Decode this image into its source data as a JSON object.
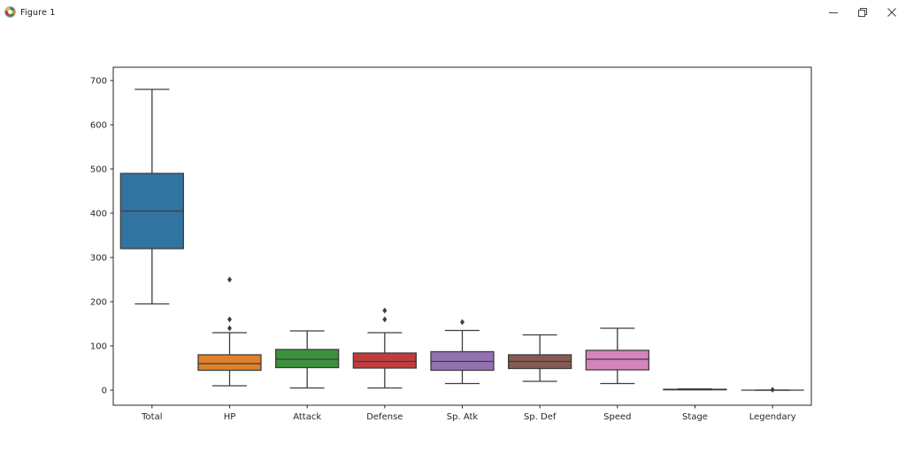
{
  "window": {
    "title": "Figure 1",
    "controls": {
      "minimize": "minimize",
      "restore": "restore",
      "close": "close"
    }
  },
  "chart_data": {
    "type": "boxplot",
    "title": "",
    "xlabel": "",
    "ylabel": "",
    "categories": [
      "Total",
      "HP",
      "Attack",
      "Defense",
      "Sp. Atk",
      "Sp. Def",
      "Speed",
      "Stage",
      "Legendary"
    ],
    "yticks": [
      0,
      100,
      200,
      300,
      400,
      500,
      600,
      700
    ],
    "ylim": [
      -34,
      730
    ],
    "grid": false,
    "legend": false,
    "boxes": [
      {
        "label": "Total",
        "color": "#3274a1",
        "whislo": 195,
        "q1": 320,
        "med": 405,
        "q3": 490,
        "whishi": 680,
        "fliers": []
      },
      {
        "label": "HP",
        "color": "#e1812c",
        "whislo": 10,
        "q1": 45,
        "med": 60,
        "q3": 80,
        "whishi": 130,
        "fliers": [
          140,
          160,
          250
        ]
      },
      {
        "label": "Attack",
        "color": "#3a923a",
        "whislo": 5,
        "q1": 51,
        "med": 70,
        "q3": 92,
        "whishi": 134,
        "fliers": []
      },
      {
        "label": "Defense",
        "color": "#c03d3e",
        "whislo": 5,
        "q1": 50,
        "med": 65,
        "q3": 84,
        "whishi": 130,
        "fliers": [
          160,
          180
        ]
      },
      {
        "label": "Sp. Atk",
        "color": "#9372b2",
        "whislo": 15,
        "q1": 45,
        "med": 65,
        "q3": 87,
        "whishi": 135,
        "fliers": [
          154
        ]
      },
      {
        "label": "Sp. Def",
        "color": "#845b53",
        "whislo": 20,
        "q1": 49,
        "med": 65,
        "q3": 80,
        "whishi": 125,
        "fliers": []
      },
      {
        "label": "Speed",
        "color": "#d684bd",
        "whislo": 15,
        "q1": 46,
        "med": 70,
        "q3": 90,
        "whishi": 140,
        "fliers": []
      },
      {
        "label": "Stage",
        "color": "#797979",
        "whislo": 1,
        "q1": 1,
        "med": 1,
        "q3": 2,
        "whishi": 3,
        "fliers": []
      },
      {
        "label": "Legendary",
        "color": "#b1b145",
        "whislo": 0,
        "q1": 0,
        "med": 0,
        "q3": 0,
        "whishi": 0,
        "fliers": [
          1
        ]
      }
    ],
    "style": {
      "edge_color": "#3d3d3d",
      "flier_color": "#3d3d3d",
      "spine_color": "#262626",
      "tick_label_color": "#262626",
      "background": "#ffffff"
    }
  }
}
